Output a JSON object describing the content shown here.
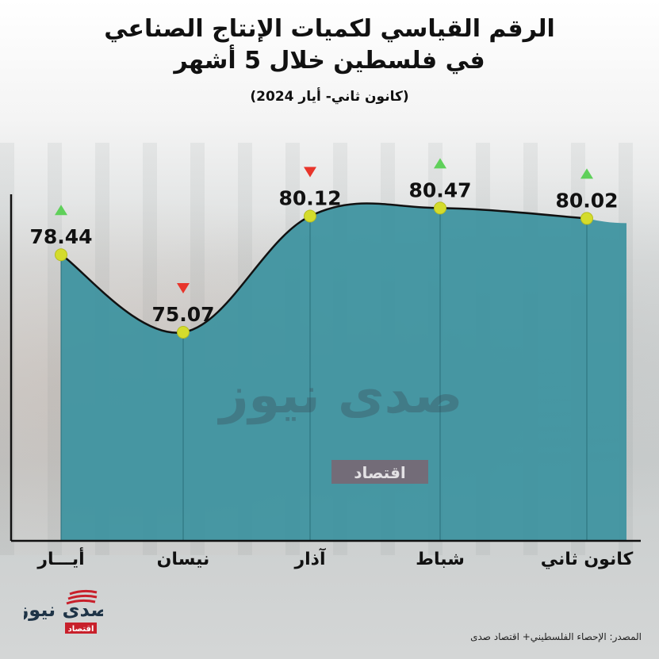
{
  "header": {
    "title_line1": "الرقم القياسي لكميات الإنتاج الصناعي",
    "title_line2": "في فلسطين خلال 5 أشهر",
    "subtitle": "(كانون ثاني- أيار 2024)"
  },
  "chart_data": {
    "type": "area",
    "categories": [
      "أيـــار",
      "نيسان",
      "آذار",
      "شباط",
      "كانون ثاني"
    ],
    "values": [
      78.44,
      75.07,
      80.12,
      80.47,
      80.02
    ],
    "value_labels": [
      "78.44",
      "75.07",
      "80.12",
      "80.47",
      "80.02"
    ],
    "trend": [
      "up",
      "down",
      "down",
      "up",
      "up"
    ],
    "ylim": [
      66,
      84
    ],
    "xlabel": "",
    "ylabel": "",
    "grid": false,
    "legend": "none",
    "colors": {
      "fill": "#3f93a0",
      "line": "#111111",
      "marker": "#d4dc2c",
      "up": "#5fd05a",
      "down": "#e8352b",
      "axis": "#111111"
    }
  },
  "watermark": {
    "brand": "صدى نيوز",
    "sub": "اقتصاد"
  },
  "footer": {
    "source": "المصدر: الإحصاء الفلسطيني+ اقتصاد صدى"
  }
}
